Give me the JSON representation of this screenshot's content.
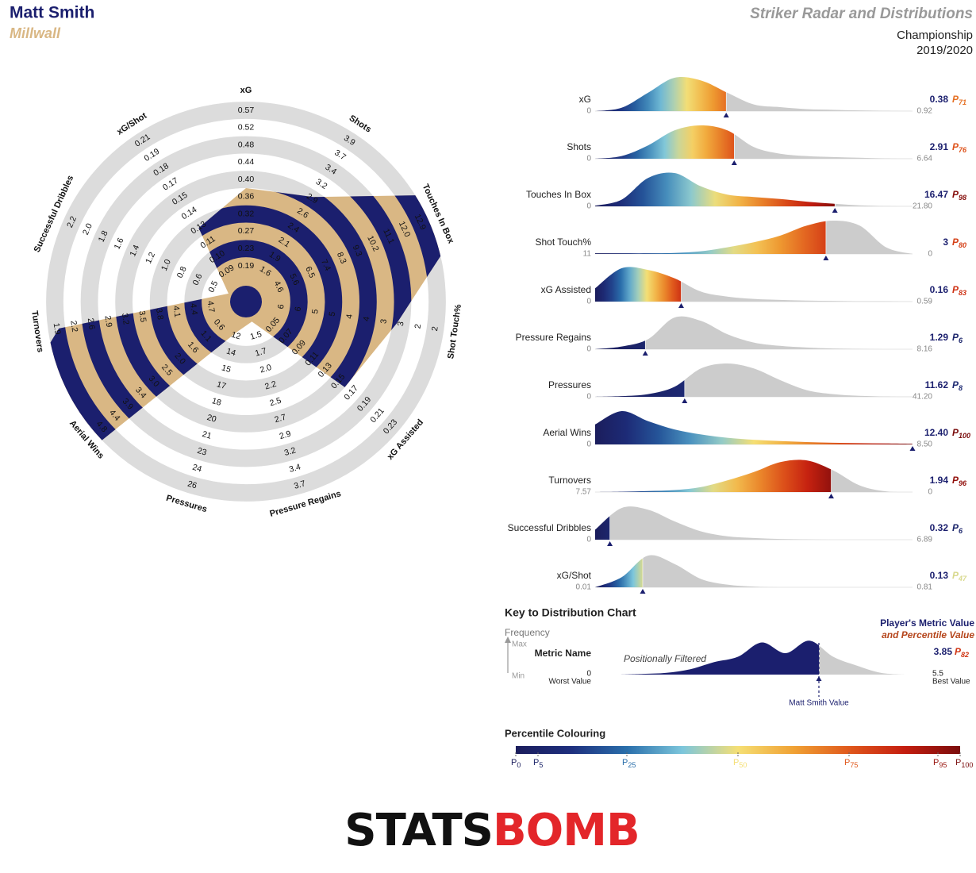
{
  "header": {
    "player": "Matt Smith",
    "team": "Millwall",
    "title": "Striker Radar and Distributions",
    "competition": "Championship",
    "season": "2019/2020"
  },
  "type": "radar",
  "colors": {
    "player": "#1b1f6e",
    "team": "#d9b784",
    "band": "#dcdcdc",
    "rest": "#cccccc",
    "title": "#999999"
  },
  "percentile_prefix": "P",
  "metrics": [
    {
      "name": "xG",
      "value": 0.38,
      "percentile": 71,
      "xlim": [
        0,
        0.92
      ],
      "radar_ticks": [
        0.19,
        0.23,
        0.27,
        0.32,
        0.36,
        {
          "value": 0.4,
          "label": "0.40"
        },
        0.44,
        0.48,
        0.52,
        0.57
      ],
      "density": [
        0,
        0.1,
        0.55,
        1,
        0.92,
        0.55,
        0.2,
        0.12,
        0.06,
        0.04,
        0.02,
        0.01,
        0
      ]
    },
    {
      "name": "Shots",
      "value": 2.91,
      "percentile": 76,
      "xlim": [
        0,
        6.64
      ],
      "radar_ticks": [
        1.6,
        1.9,
        2.1,
        2.4,
        2.6,
        2.9,
        3.2,
        3.4,
        3.7,
        3.9
      ],
      "density": [
        0,
        0.08,
        0.4,
        0.85,
        1,
        0.85,
        0.35,
        0.15,
        0.08,
        0.05,
        0.03,
        0.01,
        0
      ]
    },
    {
      "name": "Touches In Box",
      "value": 16.47,
      "percentile": 98,
      "xlim": [
        0,
        {
          "value": 21.8,
          "label": "21.80"
        }
      ],
      "radar_ticks": [
        4.6,
        5.6,
        6.5,
        7.4,
        8.3,
        9.3,
        10.2,
        11.1,
        {
          "value": 12,
          "label": "12.0"
        },
        12.9
      ],
      "density": [
        0.02,
        0.2,
        0.85,
        1,
        0.6,
        0.35,
        0.28,
        0.22,
        0.14,
        0.08,
        0.03,
        0.01,
        0
      ]
    },
    {
      "name": "Shot Touch%",
      "value": 3,
      "percentile": 80,
      "xlim": [
        11,
        0
      ],
      "radar_ticks": [
        6,
        6,
        5,
        5,
        4,
        4,
        3,
        3,
        2,
        2
      ],
      "density": [
        0.02,
        0.02,
        0.02,
        0.03,
        0.08,
        0.2,
        0.35,
        0.55,
        0.85,
        1,
        0.85,
        0.2,
        0
      ]
    },
    {
      "name": "xG Assisted",
      "value": 0.16,
      "percentile": 83,
      "xlim": [
        0,
        0.59
      ],
      "radar_ticks": [
        0.05,
        0.07,
        0.09,
        0.11,
        0.13,
        0.15,
        0.17,
        0.19,
        0.21,
        0.23
      ],
      "density": [
        0.4,
        1,
        0.95,
        0.7,
        0.3,
        0.15,
        0.08,
        0.05,
        0.03,
        0.02,
        0.01,
        0.01,
        0
      ]
    },
    {
      "name": "Pressure Regains",
      "value": 1.29,
      "percentile": 6,
      "xlim": [
        0,
        8.16
      ],
      "radar_ticks": [
        1.5,
        1.7,
        {
          "value": 2,
          "label": "2.0"
        },
        2.2,
        2.5,
        2.7,
        2.9,
        3.2,
        3.4,
        3.7
      ],
      "density": [
        0,
        0.08,
        0.3,
        0.95,
        0.85,
        0.45,
        0.2,
        0.1,
        0.05,
        0.02,
        0.01,
        0,
        0
      ]
    },
    {
      "name": "Pressures",
      "value": 11.62,
      "percentile": 8,
      "xlim": [
        0,
        {
          "value": 41.2,
          "label": "41.20"
        }
      ],
      "radar_ticks": [
        12,
        14,
        15,
        17,
        18,
        20,
        21,
        23,
        24,
        26
      ],
      "density": [
        0,
        0.02,
        0.08,
        0.3,
        0.85,
        1,
        0.85,
        0.5,
        0.2,
        0.08,
        0.03,
        0.01,
        0
      ]
    },
    {
      "name": "Aerial Wins",
      "value": 12.4,
      "value_label": "12.40",
      "percentile": 100,
      "xlim": [
        0,
        {
          "value": 8.5,
          "label": "8.50"
        }
      ],
      "radar_ticks": [
        0.6,
        1.1,
        1.6,
        {
          "value": 2,
          "label": "2.0"
        },
        2.5,
        {
          "value": 3,
          "label": "3.0"
        },
        3.4,
        3.9,
        4.4,
        4.8
      ],
      "density": [
        0.6,
        1,
        0.7,
        0.45,
        0.3,
        0.2,
        0.14,
        0.1,
        0.07,
        0.05,
        0.04,
        0.03,
        0.02
      ]
    },
    {
      "name": "Turnovers",
      "value": 1.94,
      "percentile": 96,
      "xlim": [
        7.57,
        0
      ],
      "radar_ticks": [
        4.7,
        4.4,
        4.1,
        3.8,
        3.5,
        3.2,
        2.9,
        2.6,
        2.2,
        1.9
      ],
      "density": [
        0,
        0.01,
        0.03,
        0.06,
        0.15,
        0.35,
        0.6,
        0.9,
        0.95,
        0.65,
        0.2,
        0.02,
        0
      ]
    },
    {
      "name": "Successful Dribbles",
      "value": 0.32,
      "percentile": 6,
      "xlim": [
        0,
        6.89
      ],
      "radar_ticks": [
        0.5,
        0.6,
        0.8,
        {
          "value": 1,
          "label": "1.0"
        },
        1.2,
        1.4,
        1.6,
        1.8,
        {
          "value": 2,
          "label": "2.0"
        },
        2.2
      ],
      "density": [
        0.3,
        0.95,
        0.9,
        0.55,
        0.25,
        0.1,
        0.05,
        0.02,
        0.01,
        0,
        0,
        0,
        0
      ]
    },
    {
      "name": "xG/Shot",
      "value": 0.13,
      "percentile": 47,
      "xlim": [
        0.01,
        0.81
      ],
      "radar_ticks": [
        0.09,
        {
          "value": 0.1,
          "label": "0.10"
        },
        0.11,
        0.13,
        0.14,
        0.15,
        0.17,
        0.18,
        0.19,
        0.21
      ],
      "density": [
        0,
        0.3,
        0.95,
        0.7,
        0.25,
        0.08,
        0.02,
        0,
        0,
        0,
        0,
        0,
        0
      ]
    }
  ],
  "key": {
    "title": "Key to Distribution Chart",
    "frequency": "Frequency",
    "max": "Max",
    "min": "Min",
    "metric_name": "Metric Name",
    "filter_note": "Positionally Filtered",
    "value_heading": "Player's Metric Value",
    "percentile_heading": "and Percentile Value",
    "value": 3.85,
    "percentile": 82,
    "xlim": [
      0,
      5.5
    ],
    "worst": "Worst Value",
    "best": "Best Value",
    "marker_label": "Matt Smith Value",
    "density": [
      0,
      0.02,
      0.05,
      0.15,
      0.35,
      0.5,
      0.9,
      0.6,
      0.95,
      0.5,
      0.25,
      0.05,
      0
    ]
  },
  "percentile_scale": {
    "title": "Percentile Colouring",
    "ticks": [
      0,
      5,
      25,
      50,
      75,
      95,
      100
    ],
    "colors": [
      "#1b1d5c",
      "#1e2f7e",
      "#2a6fab",
      "#7cc6dc",
      "#f5df74",
      "#f0a234",
      "#e0581c",
      "#c41d0f",
      "#7a0c0c"
    ]
  },
  "logo": {
    "left": "STATS",
    "right": "BOMB"
  }
}
